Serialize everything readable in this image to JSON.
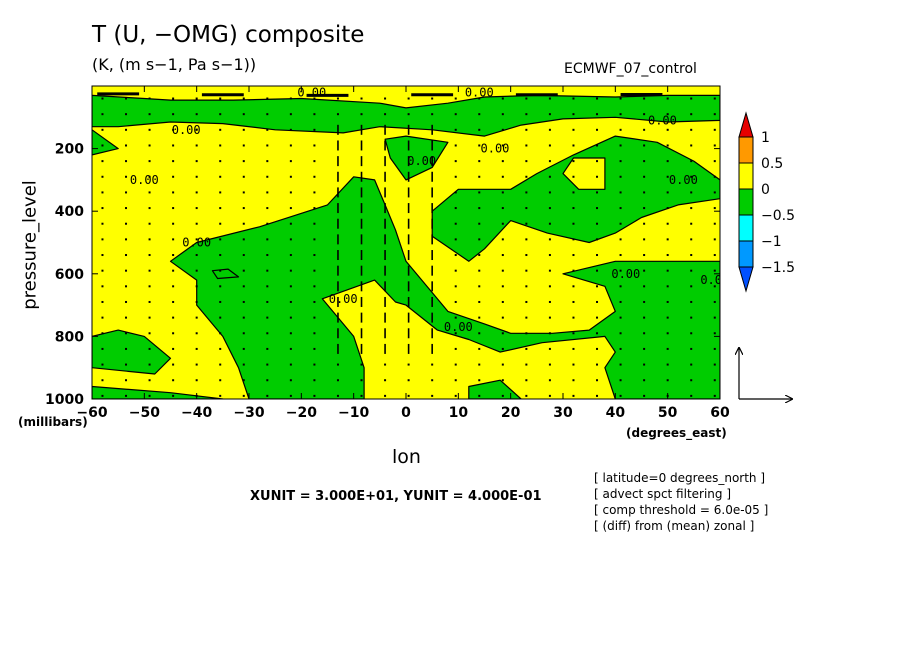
{
  "header": {
    "title": "T (U, −OMG) composite",
    "subtitle": "(K, (m s−1, Pa s−1))",
    "source": "ECMWF_07_control"
  },
  "colors": {
    "positive_fill": "#ffff00",
    "negative_fill": "#00cc00",
    "contour_line": "#000000"
  },
  "notes": [
    "[ latitude=0 degrees_north ]",
    "[ advect spct filtering ]",
    "[ comp threshold = 6.0e-05 ]",
    "[ (diff) from (mean) zonal ]"
  ],
  "chart_data": {
    "type": "heatmap",
    "xlabel": "lon",
    "ylabel": "pressure_level",
    "x_units": "(degrees_east)",
    "y_units": "(millibars)",
    "xlim": [
      -60,
      60
    ],
    "ylim": [
      1000,
      0
    ],
    "x_ticks": [
      -60,
      -50,
      -40,
      -30,
      -20,
      -10,
      0,
      10,
      20,
      30,
      40,
      50,
      60
    ],
    "x_tick_labels": [
      "−60",
      "−50",
      "−40",
      "−30",
      "−20",
      "−10",
      "0",
      "10",
      "20",
      "30",
      "40",
      "50",
      "60"
    ],
    "y_ticks": [
      200,
      400,
      600,
      800,
      1000
    ],
    "y_tick_labels": [
      "200",
      "400",
      "600",
      "800",
      "1000"
    ],
    "contour_label": "0.00",
    "contour_label_positions": [
      {
        "lon": -18,
        "p": 20
      },
      {
        "lon": 14,
        "p": 20
      },
      {
        "lon": -42,
        "p": 140
      },
      {
        "lon": 17,
        "p": 200
      },
      {
        "lon": 49,
        "p": 110
      },
      {
        "lon": -50,
        "p": 300
      },
      {
        "lon": -40,
        "p": 500
      },
      {
        "lon": 3,
        "p": 240
      },
      {
        "lon": 53,
        "p": 300
      },
      {
        "lon": -12,
        "p": 680
      },
      {
        "lon": 10,
        "p": 770
      },
      {
        "lon": 42,
        "p": 600
      },
      {
        "lon": 59,
        "p": 620
      }
    ],
    "legend": {
      "placement": "right",
      "levels": [
        "1",
        "0.5",
        "0",
        "−0.5",
        "−1",
        "−1.5"
      ],
      "colors": [
        "#e60000",
        "#ff9900",
        "#ffff00",
        "#00cc00",
        "#00ffff",
        "#0099ff",
        "#0050ff"
      ]
    },
    "negative_regions": [
      [
        [
          -60,
          30
        ],
        [
          -50,
          40
        ],
        [
          -45,
          45
        ],
        [
          -33,
          45
        ],
        [
          -20,
          40
        ],
        [
          -5,
          55
        ],
        [
          0,
          70
        ],
        [
          8,
          55
        ],
        [
          15,
          35
        ],
        [
          25,
          30
        ],
        [
          40,
          35
        ],
        [
          50,
          30
        ],
        [
          60,
          30
        ],
        [
          60,
          110
        ],
        [
          50,
          115
        ],
        [
          40,
          100
        ],
        [
          30,
          105
        ],
        [
          22,
          125
        ],
        [
          15,
          160
        ],
        [
          5,
          140
        ],
        [
          -5,
          130
        ],
        [
          -12,
          150
        ],
        [
          -25,
          140
        ],
        [
          -35,
          120
        ],
        [
          -45,
          115
        ],
        [
          -55,
          130
        ],
        [
          -60,
          130
        ]
      ],
      [
        [
          -60,
          140
        ],
        [
          -55,
          200
        ],
        [
          -60,
          220
        ],
        [
          -60,
          160
        ]
      ],
      [
        [
          -10,
          290
        ],
        [
          -15,
          380
        ],
        [
          -28,
          450
        ],
        [
          -40,
          500
        ],
        [
          -45,
          560
        ],
        [
          -40,
          620
        ],
        [
          -40,
          700
        ],
        [
          -35,
          800
        ],
        [
          -32,
          900
        ],
        [
          -30,
          1000
        ],
        [
          -8,
          1000
        ],
        [
          -8,
          900
        ],
        [
          -10,
          800
        ],
        [
          -16,
          680
        ],
        [
          -6,
          620
        ],
        [
          -2,
          690
        ],
        [
          0,
          700
        ],
        [
          6,
          780
        ],
        [
          12,
          810
        ],
        [
          18,
          850
        ],
        [
          26,
          820
        ],
        [
          38,
          800
        ],
        [
          40,
          850
        ],
        [
          38,
          900
        ],
        [
          40,
          1000
        ],
        [
          60,
          1000
        ],
        [
          60,
          560
        ],
        [
          50,
          560
        ],
        [
          40,
          560
        ],
        [
          30,
          600
        ],
        [
          38,
          640
        ],
        [
          40,
          720
        ],
        [
          35,
          780
        ],
        [
          28,
          790
        ],
        [
          20,
          790
        ],
        [
          15,
          760
        ],
        [
          8,
          720
        ],
        [
          4,
          640
        ],
        [
          0,
          560
        ],
        [
          -2,
          460
        ],
        [
          -4,
          380
        ],
        [
          -6,
          300
        ]
      ],
      [
        [
          0,
          160
        ],
        [
          8,
          180
        ],
        [
          5,
          260
        ],
        [
          0,
          300
        ],
        [
          -3,
          230
        ],
        [
          -4,
          170
        ]
      ],
      [
        [
          20,
          330
        ],
        [
          25,
          280
        ],
        [
          32,
          220
        ],
        [
          40,
          160
        ],
        [
          48,
          180
        ],
        [
          55,
          240
        ],
        [
          60,
          300
        ],
        [
          60,
          360
        ],
        [
          52,
          380
        ],
        [
          45,
          420
        ],
        [
          40,
          470
        ],
        [
          35,
          500
        ],
        [
          27,
          470
        ],
        [
          20,
          430
        ],
        [
          15,
          520
        ],
        [
          12,
          560
        ],
        [
          5,
          480
        ],
        [
          5,
          400
        ],
        [
          10,
          330
        ]
      ],
      [
        [
          -37,
          590
        ],
        [
          -34,
          585
        ],
        [
          -32,
          610
        ],
        [
          -36,
          615
        ]
      ],
      [
        [
          -60,
          800
        ],
        [
          -55,
          780
        ],
        [
          -50,
          800
        ],
        [
          -45,
          870
        ],
        [
          -48,
          920
        ],
        [
          -60,
          900
        ]
      ],
      [
        [
          -60,
          960
        ],
        [
          -45,
          980
        ],
        [
          -35,
          1000
        ],
        [
          -60,
          1000
        ]
      ],
      [
        [
          12,
          960
        ],
        [
          18,
          940
        ],
        [
          22,
          1000
        ],
        [
          12,
          1000
        ]
      ]
    ],
    "positive_regions": [
      [
        [
          32,
          230
        ],
        [
          38,
          230
        ],
        [
          38,
          330
        ],
        [
          33,
          330
        ],
        [
          30,
          280
        ]
      ]
    ],
    "vectors": {
      "description": "wind vector field (U, -OMG)",
      "unit_label": "XUNIT = 3.000E+01, YUNIT = 4.000E-01"
    }
  }
}
